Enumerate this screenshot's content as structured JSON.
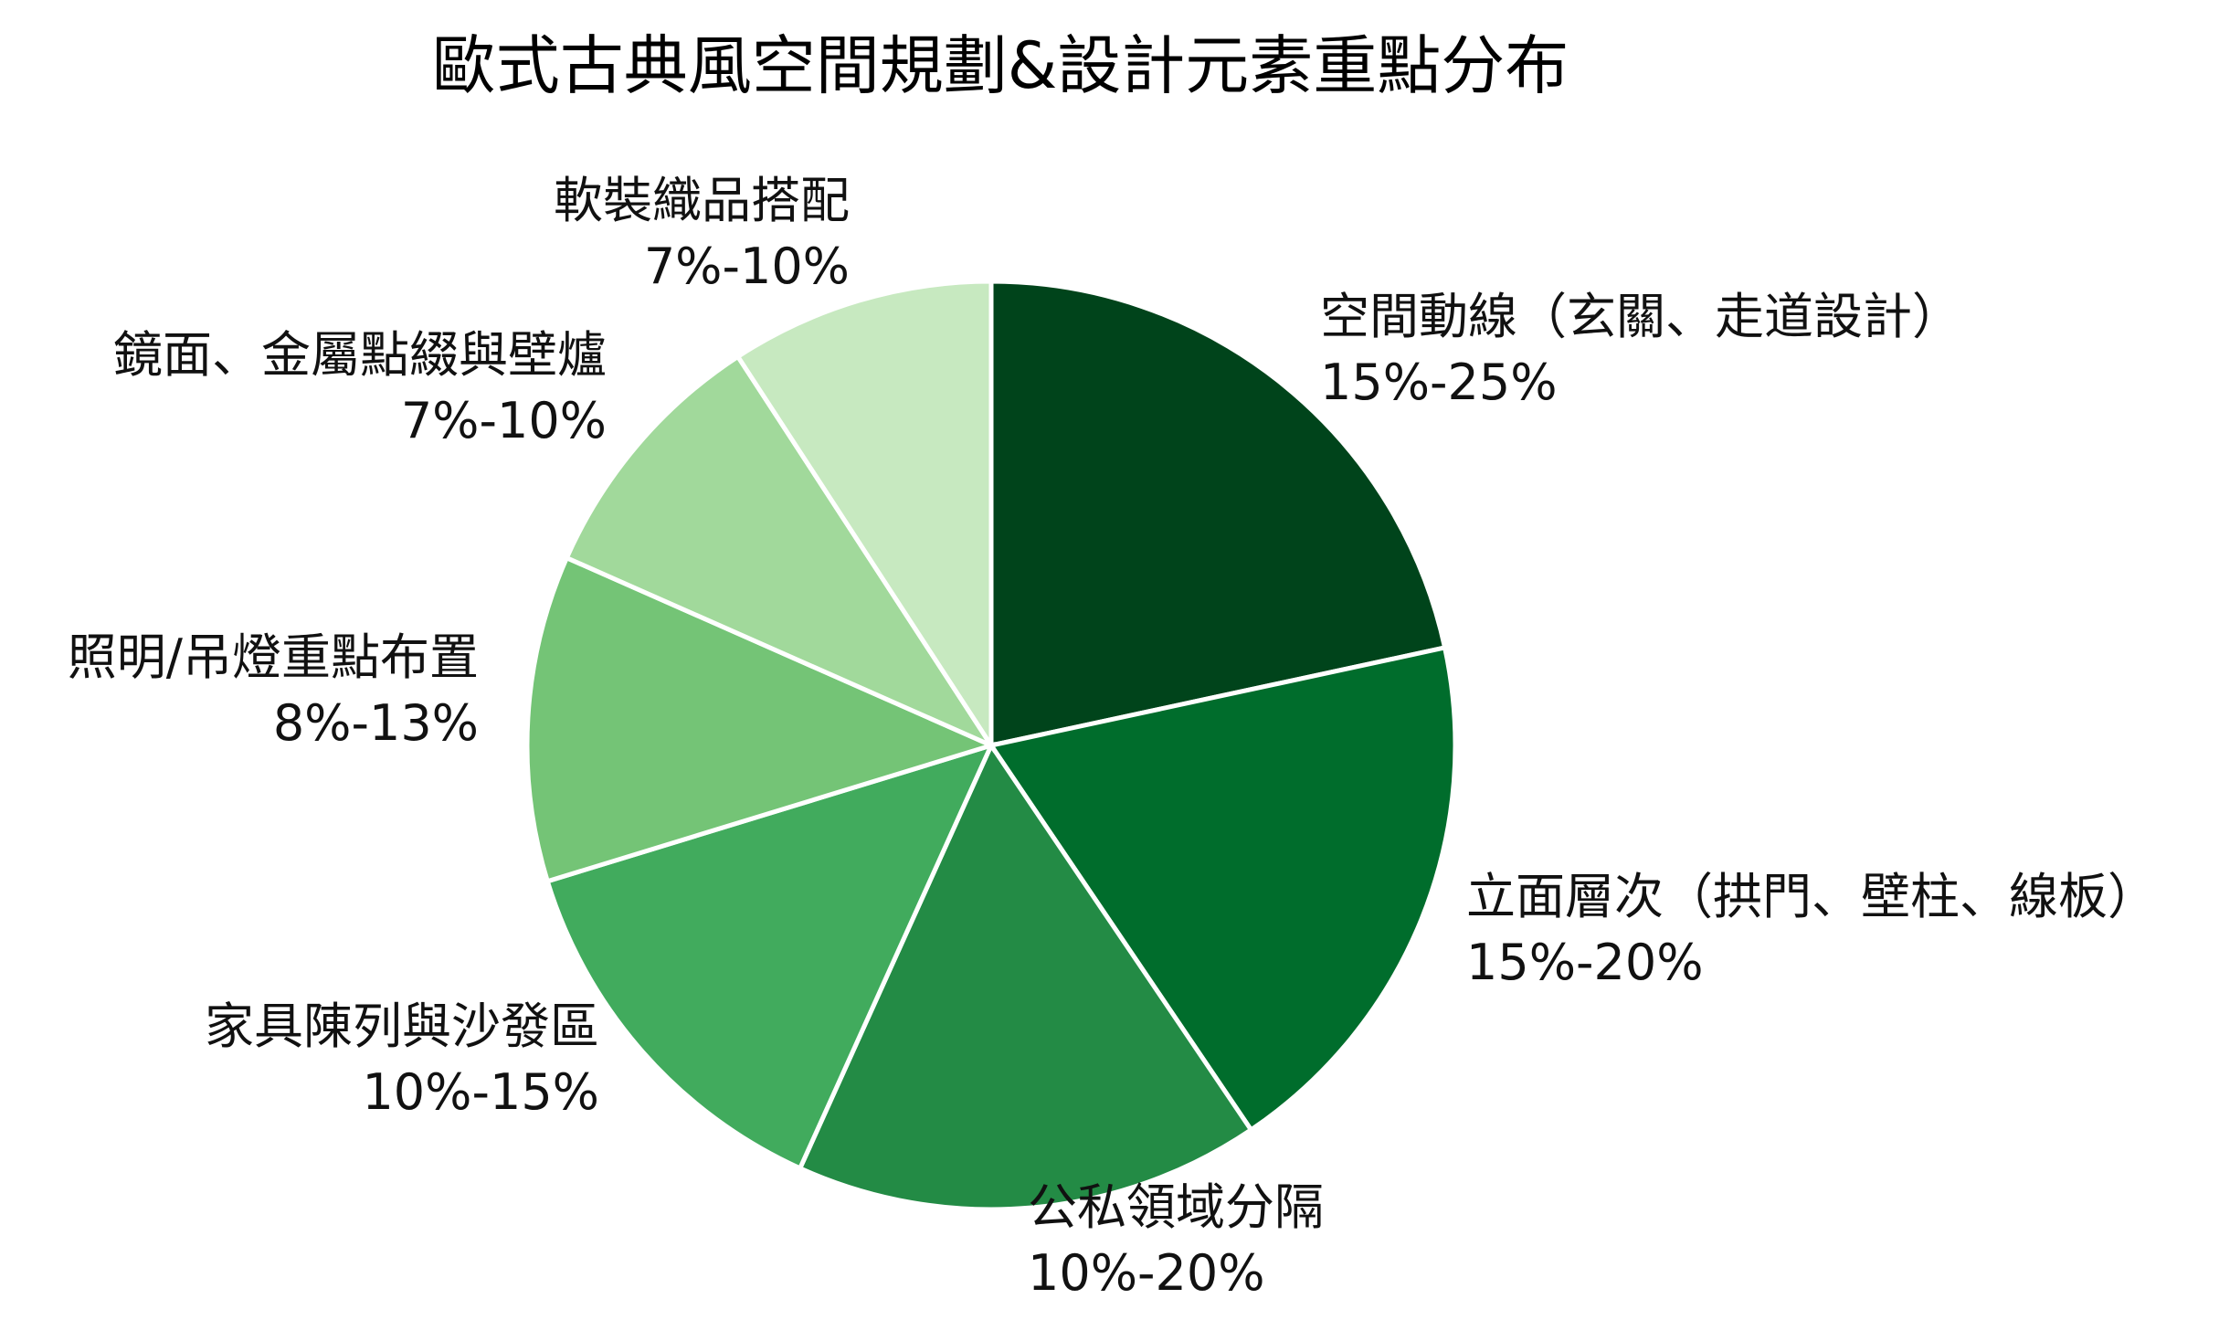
{
  "chart_data": {
    "type": "pie",
    "title": "歐式古典風空間規劃&設計元素重點分布",
    "start_angle_deg": 0,
    "direction": "clockwise",
    "slices": [
      {
        "label": "空間動線（玄關、走道設計）",
        "range_text": "15%-25%",
        "value": 20,
        "color": "#00441b"
      },
      {
        "label": "立面層次（拱門、壁柱、線板）",
        "range_text": "15%-20%",
        "value": 17.5,
        "color": "#006d2c"
      },
      {
        "label": "公私領域分隔",
        "range_text": "10%-20%",
        "value": 15,
        "color": "#238b45"
      },
      {
        "label": "家具陳列與沙發區",
        "range_text": "10%-15%",
        "value": 12.5,
        "color": "#41ab5d"
      },
      {
        "label": "照明/吊燈重點布置",
        "range_text": "8%-13%",
        "value": 10.5,
        "color": "#74c476"
      },
      {
        "label": "鏡面、金屬點綴與壁爐",
        "range_text": "7%-10%",
        "value": 8.5,
        "color": "#a1d99b"
      },
      {
        "label": "軟裝織品搭配",
        "range_text": "7%-10%",
        "value": 8.5,
        "color": "#c7e9c0"
      }
    ]
  }
}
